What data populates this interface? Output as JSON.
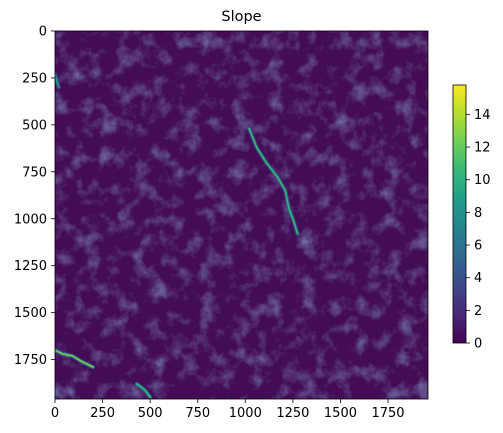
{
  "chart_data": {
    "type": "heatmap",
    "title": "Slope",
    "xlabel": "",
    "ylabel": "",
    "xlim": [
      0,
      1960
    ],
    "ylim": [
      1960,
      0
    ],
    "x_ticks": [
      0,
      250,
      500,
      750,
      1000,
      1250,
      1500,
      1750
    ],
    "y_ticks": [
      0,
      250,
      500,
      750,
      1000,
      1250,
      1500,
      1750
    ],
    "colormap": "viridis",
    "colorbar": {
      "range": [
        0,
        15.8
      ],
      "ticks": [
        0,
        2,
        4,
        6,
        8,
        10,
        12,
        14
      ]
    },
    "grid": false,
    "features": [
      {
        "label": "bright ridge (high slope)",
        "path": [
          [
            1020,
            520
          ],
          [
            1060,
            620
          ],
          [
            1110,
            700
          ],
          [
            1170,
            780
          ],
          [
            1210,
            850
          ],
          [
            1230,
            950
          ],
          [
            1250,
            1000
          ],
          [
            1275,
            1080
          ]
        ],
        "level": 0.62
      },
      {
        "label": "bright cluster lower-left",
        "path": [
          [
            0,
            1700
          ],
          [
            40,
            1720
          ],
          [
            90,
            1730
          ],
          [
            140,
            1760
          ],
          [
            200,
            1790
          ]
        ],
        "level": 0.82
      },
      {
        "label": "bright spot bottom",
        "path": [
          [
            430,
            1880
          ],
          [
            470,
            1910
          ],
          [
            500,
            1950
          ]
        ],
        "level": 0.7
      },
      {
        "label": "left edge spot",
        "path": [
          [
            0,
            230
          ],
          [
            10,
            270
          ],
          [
            20,
            300
          ]
        ],
        "level": 0.55
      }
    ]
  }
}
